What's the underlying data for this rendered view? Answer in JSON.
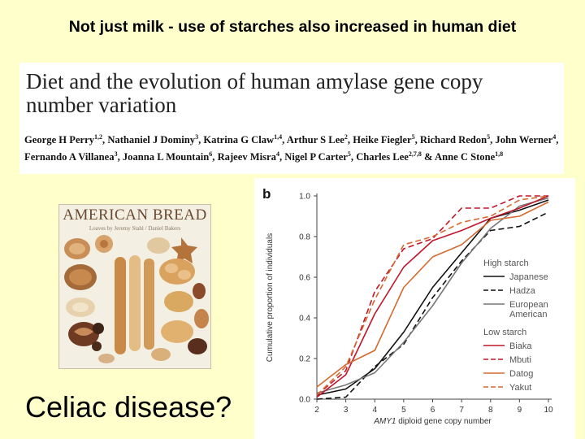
{
  "slide": {
    "title": "Not just milk - use of starches also increased in human diet",
    "caption": "Celiac disease?"
  },
  "paper": {
    "title": "Diet and the evolution of human amylase gene copy number variation",
    "authors": [
      {
        "name": "George H Perry",
        "aff": "1,2"
      },
      {
        "name": "Nathaniel J Dominy",
        "aff": "3"
      },
      {
        "name": "Katrina G Claw",
        "aff": "1,4"
      },
      {
        "name": "Arthur S Lee",
        "aff": "2"
      },
      {
        "name": "Heike Fiegler",
        "aff": "5"
      },
      {
        "name": "Richard Redon",
        "aff": "5"
      },
      {
        "name": "John Werner",
        "aff": "4"
      },
      {
        "name": "Fernando A Villanea",
        "aff": "3"
      },
      {
        "name": "Joanna L Mountain",
        "aff": "6"
      },
      {
        "name": "Rajeev Misra",
        "aff": "4"
      },
      {
        "name": "Nigel P Carter",
        "aff": "5"
      },
      {
        "name": "Charles Lee",
        "aff": "2,7,8"
      },
      {
        "name": "Anne C Stone",
        "aff": "1,8"
      }
    ]
  },
  "poster": {
    "title": "AMERICAN BREAD",
    "subtitle": "Loaves by Jeremy Stahl / Daniel Bakers"
  },
  "chart_data": {
    "type": "line",
    "panel_label": "b",
    "xlabel_prefix": "AMY1",
    "xlabel_rest": " diploid gene copy number",
    "ylabel": "Cumulative proportion of individuals",
    "xlim": [
      2,
      10
    ],
    "ylim": [
      0,
      1
    ],
    "xticks": [
      2,
      3,
      4,
      5,
      6,
      7,
      8,
      9,
      10
    ],
    "yticks": [
      "0.0",
      "0.2",
      "0.4",
      "0.6",
      "0.8",
      "1.0"
    ],
    "legend_groups": [
      {
        "title": "High starch",
        "items": [
          {
            "name": "Japanese",
            "color": "#111111",
            "dash": "solid"
          },
          {
            "name": "Hadza",
            "color": "#111111",
            "dash": "dashed"
          },
          {
            "name": "European American",
            "color": "#777777",
            "dash": "solid"
          }
        ]
      },
      {
        "title": "Low starch",
        "items": [
          {
            "name": "Biaka",
            "color": "#c0162c",
            "dash": "solid"
          },
          {
            "name": "Mbuti",
            "color": "#c0162c",
            "dash": "dashed"
          },
          {
            "name": "Datog",
            "color": "#d46a30",
            "dash": "solid"
          },
          {
            "name": "Yakut",
            "color": "#d46a30",
            "dash": "dashed"
          }
        ]
      }
    ],
    "series": [
      {
        "name": "Japanese",
        "color": "#111111",
        "dash": "solid",
        "x": [
          2,
          3,
          4,
          5,
          6,
          7,
          8,
          9,
          10
        ],
        "y": [
          0.02,
          0.05,
          0.15,
          0.33,
          0.55,
          0.72,
          0.89,
          0.93,
          0.98
        ]
      },
      {
        "name": "Hadza",
        "color": "#111111",
        "dash": "dashed",
        "x": [
          2,
          3,
          4,
          5,
          6,
          7,
          8,
          9,
          10
        ],
        "y": [
          0.0,
          0.01,
          0.16,
          0.27,
          0.5,
          0.68,
          0.83,
          0.85,
          0.92
        ]
      },
      {
        "name": "European American",
        "color": "#777777",
        "dash": "solid",
        "x": [
          2,
          3,
          4,
          5,
          6,
          7,
          8,
          9,
          10
        ],
        "y": [
          0.03,
          0.07,
          0.13,
          0.28,
          0.46,
          0.67,
          0.84,
          0.95,
          0.99
        ]
      },
      {
        "name": "Biaka",
        "color": "#c0162c",
        "dash": "solid",
        "x": [
          2,
          3,
          4,
          5,
          6,
          7,
          8,
          9,
          10
        ],
        "y": [
          0.01,
          0.12,
          0.42,
          0.65,
          0.78,
          0.83,
          0.89,
          0.94,
          1.0
        ]
      },
      {
        "name": "Mbuti",
        "color": "#c0162c",
        "dash": "dashed",
        "x": [
          2,
          3,
          4,
          5,
          6,
          7,
          8,
          9,
          10
        ],
        "y": [
          0.02,
          0.14,
          0.53,
          0.74,
          0.79,
          0.94,
          0.94,
          1.0,
          1.0
        ]
      },
      {
        "name": "Datog",
        "color": "#d46a30",
        "dash": "solid",
        "x": [
          2,
          3,
          4,
          5,
          6,
          7,
          8,
          9,
          10
        ],
        "y": [
          0.06,
          0.17,
          0.24,
          0.55,
          0.7,
          0.76,
          0.88,
          0.9,
          0.97
        ]
      },
      {
        "name": "Yakut",
        "color": "#d46a30",
        "dash": "dashed",
        "x": [
          2,
          3,
          4,
          5,
          6,
          7,
          8,
          9,
          10
        ],
        "y": [
          0.02,
          0.16,
          0.49,
          0.76,
          0.8,
          0.87,
          0.9,
          0.98,
          1.0
        ]
      }
    ],
    "grid": false,
    "legend_position": "right"
  }
}
